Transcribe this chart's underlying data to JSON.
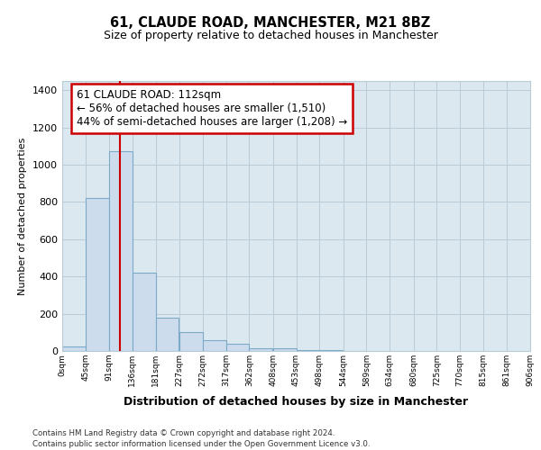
{
  "title": "61, CLAUDE ROAD, MANCHESTER, M21 8BZ",
  "subtitle": "Size of property relative to detached houses in Manchester",
  "xlabel": "Distribution of detached houses by size in Manchester",
  "ylabel": "Number of detached properties",
  "footnote1": "Contains HM Land Registry data © Crown copyright and database right 2024.",
  "footnote2": "Contains public sector information licensed under the Open Government Licence v3.0.",
  "bin_edges": [
    0,
    45,
    91,
    136,
    181,
    227,
    272,
    317,
    362,
    408,
    453,
    498,
    544,
    589,
    634,
    680,
    725,
    770,
    815,
    861,
    906
  ],
  "bar_heights": [
    22,
    820,
    1075,
    420,
    180,
    100,
    58,
    38,
    15,
    15,
    5,
    3,
    2,
    0,
    0,
    0,
    0,
    0,
    0,
    0
  ],
  "bar_color": "#ccdcec",
  "bar_edge_color": "#7aaac8",
  "property_line_x": 112,
  "property_line_color": "#cc0000",
  "annotation_text": "61 CLAUDE ROAD: 112sqm\n← 56% of detached houses are smaller (1,510)\n44% of semi-detached houses are larger (1,208) →",
  "annotation_box_color": "white",
  "annotation_box_edge_color": "#cc0000",
  "ylim": [
    0,
    1450
  ],
  "yticks": [
    0,
    200,
    400,
    600,
    800,
    1000,
    1200,
    1400
  ],
  "xlim": [
    0,
    906
  ],
  "background_color": "white",
  "plot_background_color": "#dce8f0",
  "grid_color": "#b8ccd8",
  "title_fontsize": 10.5,
  "subtitle_fontsize": 9,
  "tick_labels": [
    "0sqm",
    "45sqm",
    "91sqm",
    "136sqm",
    "181sqm",
    "227sqm",
    "272sqm",
    "317sqm",
    "362sqm",
    "408sqm",
    "453sqm",
    "498sqm",
    "544sqm",
    "589sqm",
    "634sqm",
    "680sqm",
    "725sqm",
    "770sqm",
    "815sqm",
    "861sqm",
    "906sqm"
  ]
}
